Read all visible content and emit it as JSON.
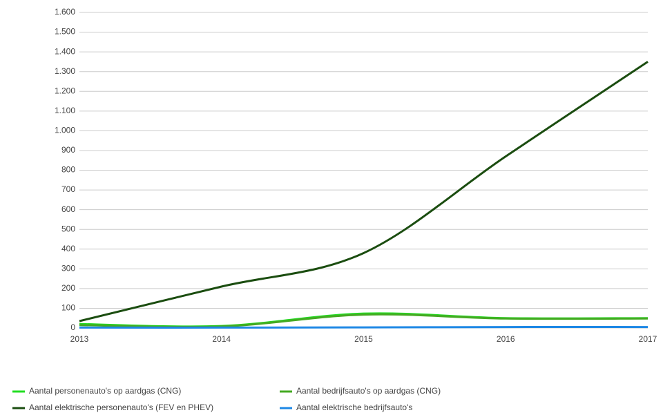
{
  "chart_data": {
    "type": "line",
    "x": [
      "2013",
      "2014",
      "2015",
      "2016",
      "2017"
    ],
    "series": [
      {
        "name": "Aantal personenauto's op aardgas (CNG)",
        "color": "#22dd22",
        "values": [
          20,
          10,
          73,
          50,
          50
        ]
      },
      {
        "name": "Aantal bedrijfsauto's op aardgas (CNG)",
        "color": "#44aa22",
        "values": [
          15,
          8,
          68,
          48,
          48
        ]
      },
      {
        "name": "Aantal elektrische personenauto's (FEV en PHEV)",
        "color": "#1b4d10",
        "values": [
          35,
          210,
          380,
          870,
          1350
        ]
      },
      {
        "name": "Aantal elektrische bedrijfsauto's",
        "color": "#1e88e5",
        "values": [
          2,
          2,
          3,
          5,
          5
        ]
      }
    ],
    "ylim": [
      0,
      1600
    ],
    "yticks": [
      0,
      100,
      200,
      300,
      400,
      500,
      600,
      700,
      800,
      900,
      {
        "value": 1000,
        "label": "1.000"
      },
      {
        "value": 1100,
        "label": "1.100"
      },
      {
        "value": 1200,
        "label": "1.200"
      },
      {
        "value": 1300,
        "label": "1.300"
      },
      {
        "value": 1400,
        "label": "1.400"
      },
      {
        "value": 1500,
        "label": "1.500"
      },
      {
        "value": 1600,
        "label": "1.600"
      }
    ],
    "grid": true
  }
}
